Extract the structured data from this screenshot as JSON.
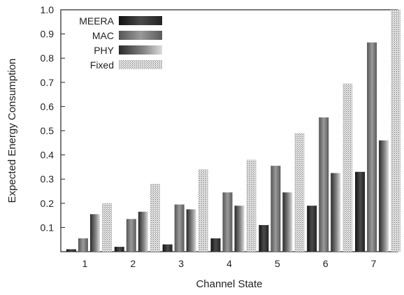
{
  "chart_data": {
    "type": "bar",
    "xlabel": "Channel State",
    "ylabel": "Expected Energy Consumption",
    "categories": [
      "1",
      "2",
      "3",
      "4",
      "5",
      "6",
      "7"
    ],
    "ylim": [
      0,
      1.0
    ],
    "yticks": [
      "0.1",
      "0.2",
      "0.3",
      "0.4",
      "0.5",
      "0.6",
      "0.7",
      "0.8",
      "0.9",
      "1.0"
    ],
    "legend_position": "top-left",
    "grid": false,
    "series": [
      {
        "name": "MEERA",
        "color": "#2f2f2f",
        "values": [
          0.01,
          0.02,
          0.03,
          0.055,
          0.11,
          0.19,
          0.33
        ]
      },
      {
        "name": "MAC",
        "color": "#6a6a6a",
        "values": [
          0.055,
          0.135,
          0.195,
          0.245,
          0.355,
          0.555,
          0.865
        ]
      },
      {
        "name": "PHY",
        "color": "#555555",
        "values": [
          0.155,
          0.165,
          0.175,
          0.19,
          0.245,
          0.325,
          0.46
        ]
      },
      {
        "name": "Fixed",
        "color": "#bdbdbd",
        "values": [
          0.2,
          0.28,
          0.34,
          0.38,
          0.49,
          0.695,
          1.0
        ]
      }
    ]
  }
}
